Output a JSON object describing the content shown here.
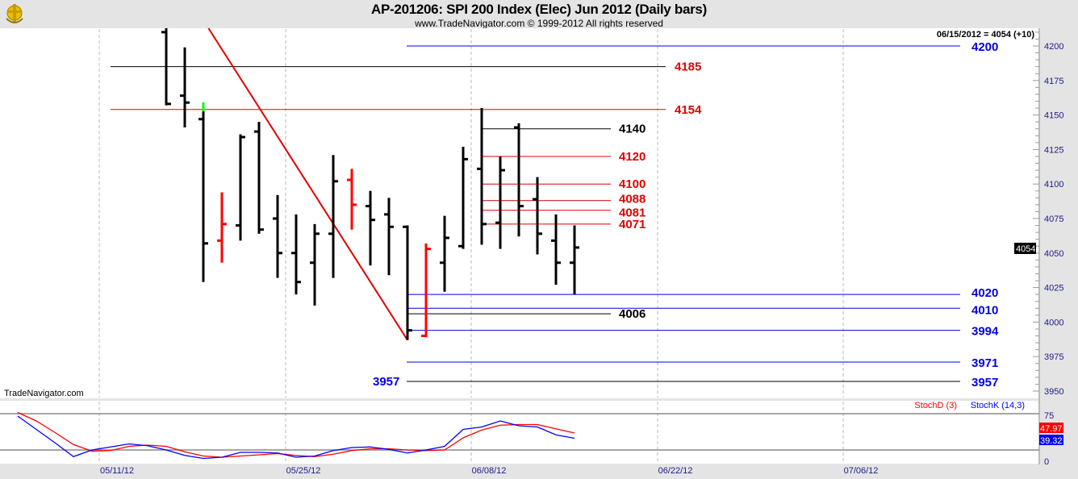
{
  "header": {
    "title": "AP-201206:  SPI 200 Index (Elec) Jun 2012  (Daily bars)",
    "copyright": "www.TradeNavigator.com © 1999-2012 All rights reserved",
    "logo_icon": "trade-navigator-anchor-logo"
  },
  "price_panel": {
    "readout": "06/15/2012 = 4054 (+10)",
    "last_price_label": "4054",
    "watermark": "TradeNavigator.com"
  },
  "stoch_panel": {
    "legend": [
      {
        "label": "StochD (3)",
        "color": "#ff0000"
      },
      {
        "label": "StochK (14,3)",
        "color": "#0000ff"
      }
    ],
    "stochd_last_label": "47.97",
    "stochk_last_label": "39.32"
  },
  "colors": {
    "up_bar": "#000000",
    "down_bar": "#ff0000",
    "highlight": "#00ff00",
    "red_level": "#e00000",
    "blue_level": "#0000e6",
    "axis_text": "#1c1c8a"
  },
  "chart_data": [
    {
      "type": "ohlc",
      "title": "AP-201206:  SPI 200 Index (Elec) Jun 2012  (Daily bars)",
      "y_ticks": [
        "4200",
        "4175",
        "4150",
        "4125",
        "4100",
        "4075",
        "4050",
        "4025",
        "4000",
        "3975",
        "3950"
      ],
      "ylim": [
        3945,
        4213
      ],
      "x_ticks": [
        "05/11/12",
        "05/25/12",
        "06/08/12",
        "06/22/12",
        "07/06/12"
      ],
      "grid": "vertical dashed at x ticks",
      "bars": [
        {
          "date": "05/16/12",
          "o": 4210,
          "h": 4213,
          "l": 4157,
          "c": 4158,
          "color": "black"
        },
        {
          "date": "05/17/12",
          "o": 4164,
          "h": 4199,
          "l": 4141,
          "c": 4159,
          "color": "black"
        },
        {
          "date": "05/18/12",
          "o": 4147,
          "h": 4159,
          "l": 4029,
          "c": 4057,
          "color": "black"
        },
        {
          "date": "05/21/12",
          "o": 4059,
          "h": 4094,
          "l": 4043,
          "c": 4071,
          "color": "red"
        },
        {
          "date": "05/22/12",
          "o": 4070,
          "h": 4136,
          "l": 4059,
          "c": 4134,
          "color": "black"
        },
        {
          "date": "05/23/12",
          "o": 4138,
          "h": 4145,
          "l": 4064,
          "c": 4067,
          "color": "black"
        },
        {
          "date": "05/24/12",
          "o": 4075,
          "h": 4092,
          "l": 4032,
          "c": 4050,
          "color": "black"
        },
        {
          "date": "05/25/12",
          "o": 4050,
          "h": 4078,
          "l": 4020,
          "c": 4029,
          "color": "black"
        },
        {
          "date": "05/28/12",
          "o": 4043,
          "h": 4071,
          "l": 4012,
          "c": 4064,
          "color": "black"
        },
        {
          "date": "05/29/12",
          "o": 4064,
          "h": 4121,
          "l": 4032,
          "c": 4102,
          "color": "black"
        },
        {
          "date": "05/30/12",
          "o": 4103,
          "h": 4111,
          "l": 4067,
          "c": 4085,
          "color": "red"
        },
        {
          "date": "05/31/12",
          "o": 4084,
          "h": 4095,
          "l": 4041,
          "c": 4074,
          "color": "black"
        },
        {
          "date": "06/01/12",
          "o": 4078,
          "h": 4090,
          "l": 4034,
          "c": 4069,
          "color": "black"
        },
        {
          "date": "06/04/12",
          "o": 4069,
          "h": 4070,
          "l": 3987,
          "c": 3994,
          "color": "black"
        },
        {
          "date": "06/05/12",
          "o": 3990,
          "h": 4057,
          "l": 3989,
          "c": 4053,
          "color": "red"
        },
        {
          "date": "06/06/12",
          "o": 4043,
          "h": 4077,
          "l": 4022,
          "c": 4061,
          "color": "black"
        },
        {
          "date": "06/07/12",
          "o": 4055,
          "h": 4127,
          "l": 4053,
          "c": 4118,
          "color": "black"
        },
        {
          "date": "06/08/12",
          "o": 4111,
          "h": 4155,
          "l": 4056,
          "c": 4071,
          "color": "black"
        },
        {
          "date": "06/11/12",
          "o": 4072,
          "h": 4120,
          "l": 4053,
          "c": 4110,
          "color": "black"
        },
        {
          "date": "06/12/12",
          "o": 4141,
          "h": 4144,
          "l": 4062,
          "c": 4084,
          "color": "black"
        },
        {
          "date": "06/13/12",
          "o": 4089,
          "h": 4105,
          "l": 4049,
          "c": 4064,
          "color": "black"
        },
        {
          "date": "06/14/12",
          "o": 4059,
          "h": 4078,
          "l": 4027,
          "c": 4043,
          "color": "black"
        },
        {
          "date": "06/15/12",
          "o": 4043,
          "h": 4070,
          "l": 4020,
          "c": 4054,
          "color": "black"
        }
      ],
      "levels": [
        {
          "value": 4200,
          "label": "4200",
          "color": "blue"
        },
        {
          "value": 4185,
          "label": "4185",
          "color": "red"
        },
        {
          "value": 4154,
          "label": "4154",
          "color": "red"
        },
        {
          "value": 4140,
          "label": "4140",
          "color": "black"
        },
        {
          "value": 4120,
          "label": "4120",
          "color": "red"
        },
        {
          "value": 4100,
          "label": "4100",
          "color": "red"
        },
        {
          "value": 4088,
          "label": "4088",
          "color": "red"
        },
        {
          "value": 4081,
          "label": "4081",
          "color": "red"
        },
        {
          "value": 4071,
          "label": "4071",
          "color": "red"
        },
        {
          "value": 4020,
          "label": "4020",
          "color": "blue"
        },
        {
          "value": 4010,
          "label": "4010",
          "color": "blue"
        },
        {
          "value": 4006,
          "label": "4006",
          "color": "black"
        },
        {
          "value": 3994,
          "label": "3994",
          "color": "blue"
        },
        {
          "value": 3971,
          "label": "3971",
          "color": "blue"
        },
        {
          "value": 3957,
          "label": "3957",
          "color": "blue"
        }
      ],
      "trendline": [
        {
          "date": "05/18/12",
          "price": 4215
        },
        {
          "date": "06/04/12",
          "price": 3987
        }
      ]
    },
    {
      "type": "line",
      "y_ticks": [
        "75",
        "0"
      ],
      "ylim": [
        0,
        100
      ],
      "reference_lines": [
        80,
        20
      ],
      "x": [
        "05/04/12",
        "05/07/12",
        "05/08/12",
        "05/09/12",
        "05/10/12",
        "05/11/12",
        "05/14/12",
        "05/15/12",
        "05/16/12",
        "05/17/12",
        "05/18/12",
        "05/21/12",
        "05/22/12",
        "05/23/12",
        "05/24/12",
        "05/25/12",
        "05/28/12",
        "05/29/12",
        "05/30/12",
        "05/31/12",
        "06/01/12",
        "06/04/12",
        "06/05/12",
        "06/06/12",
        "06/07/12",
        "06/08/12",
        "06/11/12",
        "06/12/12",
        "06/13/12",
        "06/14/12",
        "06/15/12"
      ],
      "series": [
        {
          "name": "StochD (3)",
          "color": "#ff0000",
          "values": [
            82,
            68,
            49,
            29,
            18,
            19,
            26,
            28,
            26,
            17,
            10,
            8,
            10,
            12,
            14,
            11,
            9,
            13,
            19,
            22,
            22,
            20,
            19,
            20,
            40,
            53,
            61,
            62,
            62,
            55,
            47.97
          ]
        },
        {
          "name": "StochK (14,3)",
          "color": "#0000ff",
          "values": [
            76,
            54,
            32,
            9,
            20,
            25,
            30,
            27,
            20,
            11,
            6,
            8,
            16,
            16,
            15,
            8,
            10,
            19,
            24,
            25,
            21,
            15,
            20,
            26,
            54,
            58,
            68,
            60,
            58,
            45,
            39.32
          ]
        }
      ]
    }
  ]
}
